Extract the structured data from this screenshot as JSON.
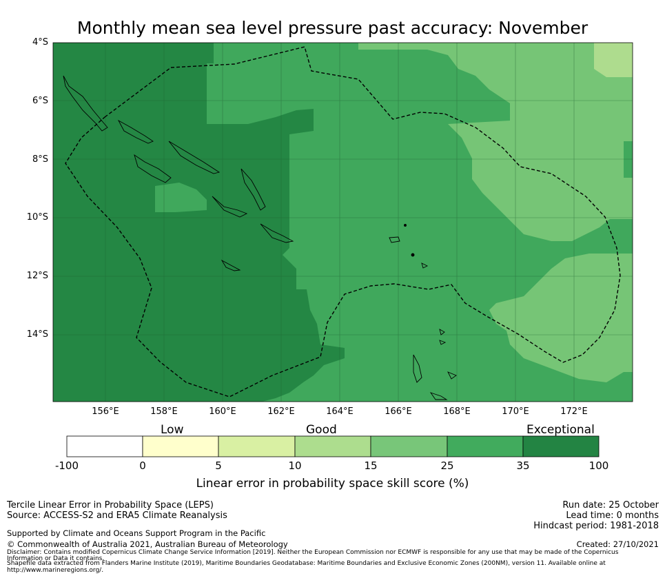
{
  "title": "Monthly mean sea level pressure past accuracy: November",
  "map": {
    "lat_labels": [
      "4°S",
      "6°S",
      "8°S",
      "10°S",
      "12°S",
      "14°S"
    ],
    "lon_labels": [
      "156°E",
      "158°E",
      "160°E",
      "162°E",
      "164°E",
      "166°E",
      "168°E",
      "170°E",
      "172°E"
    ],
    "colors": {
      "exceptional": "#248744",
      "35-25": "#40a85c",
      "25-15": "#76c576",
      "15-10": "#aedc8e",
      "ocean_border": "#000000",
      "grid": "#1f5f30"
    }
  },
  "legend": {
    "categories": [
      "Low",
      "Good",
      "Exceptional"
    ],
    "ticks": [
      "-100",
      "0",
      "5",
      "10",
      "15",
      "25",
      "35",
      "100"
    ],
    "colors": [
      "#ffffff",
      "#ffffcc",
      "#d9f0a3",
      "#addd8e",
      "#78c679",
      "#41ab5d",
      "#238443"
    ],
    "label": "Linear error in probability space skill score (%)"
  },
  "footer": {
    "left_line1": "Tercile Linear Error in Probability Space (LEPS)",
    "left_line2": "Source: ACCESS-S2 and ERA5 Climate Reanalysis",
    "left_line3": "Supported by Climate and Oceans Support Program in the Pacific",
    "left_line4": "© Commonwealth of Australia 2021, Australian Bureau of Meteorology",
    "disclaimer1": "Disclaimer: Contains modified Copernicus Climate Change Service Information [2019]. Neither the European Commission nor ECMWF is responsible for any use that may be made of the Copernicus",
    "disclaimer2": "Information or Data it contains.",
    "disclaimer3": "Shapefile data extracted from Flanders Marine Institute (2019), Maritime Boundaries Geodatabase: Maritime Boundaries and Exclusive Economic Zones (200NM), version 11. Available online at",
    "disclaimer4": "http://www.marineregions.org/.",
    "run_date": "Run date: 25 October",
    "lead_time": "Lead time: 0 months",
    "hindcast": "Hindcast period: 1981-2018",
    "created": "Created: 27/10/2021"
  }
}
